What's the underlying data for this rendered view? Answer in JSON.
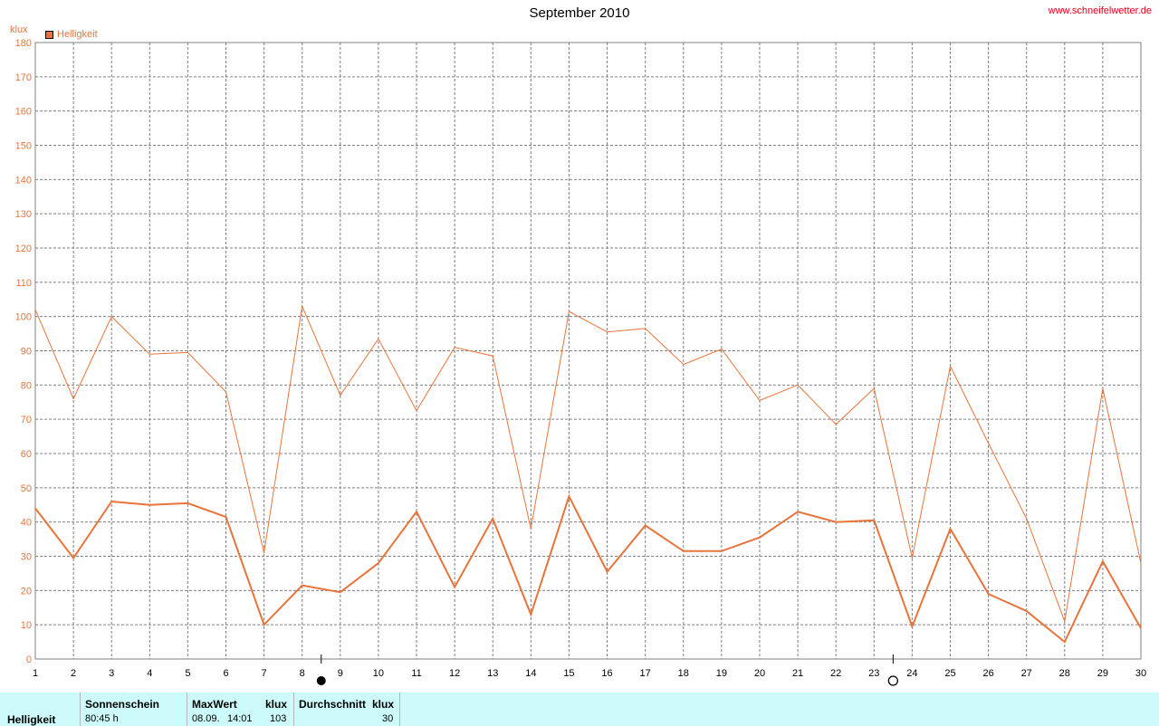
{
  "title": "September 2010",
  "site_link": "www.schneifelwetter.de",
  "unit": "klux",
  "legend_label": "Helligkeit",
  "colors": {
    "series": "#e8743b",
    "axis_text": "#e8743b",
    "grid": "#808080",
    "stats_bg": "#cdfafa",
    "link": "#e0001a"
  },
  "moon_phases": [
    {
      "day": 8.5,
      "phase": "new-moon"
    },
    {
      "day": 23.5,
      "phase": "full-moon"
    }
  ],
  "chart_data": {
    "type": "line",
    "x": [
      1,
      2,
      3,
      4,
      5,
      6,
      7,
      8,
      9,
      10,
      11,
      12,
      13,
      14,
      15,
      16,
      17,
      18,
      19,
      20,
      21,
      22,
      23,
      24,
      25,
      26,
      27,
      28,
      29,
      30
    ],
    "xlim": [
      1,
      30
    ],
    "ylim": [
      0,
      180
    ],
    "yticks": [
      0,
      10,
      20,
      30,
      40,
      50,
      60,
      70,
      80,
      90,
      100,
      110,
      120,
      130,
      140,
      150,
      160,
      170,
      180
    ],
    "ylabel": "klux",
    "grid": true,
    "legend": "top-left",
    "series": [
      {
        "name": "Helligkeit",
        "kind": "max",
        "values": [
          102,
          76,
          100,
          89,
          89.5,
          78,
          31,
          103,
          77,
          93.5,
          72.5,
          91,
          88.5,
          38,
          101.5,
          95.5,
          96.5,
          86,
          90.5,
          75.5,
          80,
          68.5,
          79,
          29.5,
          85.5,
          63,
          41,
          11,
          79,
          28
        ]
      },
      {
        "kind": "mean",
        "values": [
          44,
          29.5,
          46,
          45,
          45.5,
          41.5,
          10,
          21.5,
          19.5,
          28,
          43,
          21,
          41,
          13,
          47.5,
          25.5,
          39,
          31.5,
          31.5,
          35.5,
          43,
          40,
          40.5,
          9.5,
          38,
          19,
          14,
          5,
          28.5,
          9
        ]
      }
    ]
  },
  "stats": {
    "row_label": "Helligkeit",
    "sunshine": {
      "header": "Sonnenschein",
      "value": "80:45 h"
    },
    "max": {
      "header": "MaxWert",
      "unit": "klux",
      "date": "08.09.",
      "time": "14:01",
      "value": "103"
    },
    "avg": {
      "header": "Durchschnitt",
      "unit": "klux",
      "value": "30"
    }
  }
}
